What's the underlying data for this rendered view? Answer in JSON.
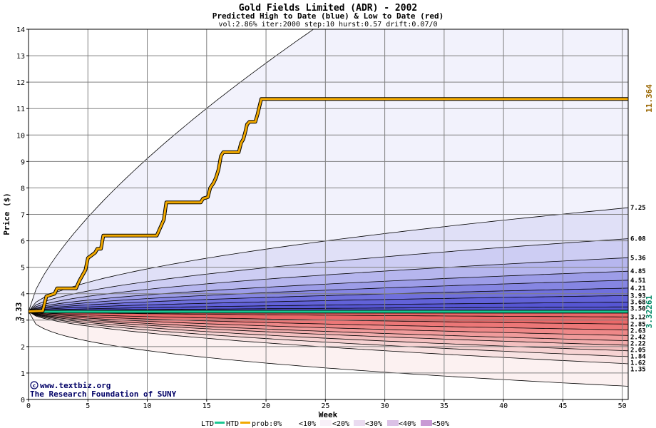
{
  "chart_data": {
    "type": "area",
    "title": "Gold Fields Limited (ADR) - 2002",
    "subtitle": "Predicted High to Date (blue) &  Low to Date (red)",
    "params": "vol:2.86% iter:2000 step:10 hurst:0.57 drift:0.07/0",
    "xlabel": "Week",
    "ylabel": "Price ($)",
    "xlim": [
      0,
      50.5
    ],
    "ylim": [
      0,
      14
    ],
    "x_ticks": [
      0,
      5,
      10,
      15,
      20,
      25,
      30,
      35,
      40,
      45,
      50
    ],
    "y_ticks": [
      0,
      1,
      2,
      3,
      4,
      5,
      6,
      7,
      8,
      9,
      10,
      11,
      12,
      13,
      14
    ],
    "grid": true,
    "start_value_label": "3.33",
    "htd_label": "11.364",
    "ltd_label": "3.32261",
    "right_labels": [
      "7.25",
      "6.08",
      "5.36",
      "4.85",
      "4.51",
      "4.21",
      "3.93",
      "3.68",
      "3.50",
      "3.12",
      "2.85",
      "2.63",
      "2.42",
      "2.22",
      "2.05",
      "1.84",
      "1.62",
      "1.35"
    ],
    "band_end_values": [
      7.25,
      6.08,
      5.36,
      4.85,
      4.51,
      4.21,
      3.93,
      3.68,
      3.5,
      3.12,
      2.85,
      2.63,
      2.42,
      2.22,
      2.05,
      1.84,
      1.62,
      1.35
    ],
    "outer_high_end": 14.0,
    "outer_high_reach_week": 24,
    "outer_low_end": 0.5,
    "start_value": 3.33,
    "htd_series": {
      "name": "HTD",
      "x": [
        0,
        1.2,
        1.5,
        2.2,
        2.4,
        4.0,
        4.3,
        4.8,
        5.0,
        5.6,
        5.8,
        6.1,
        6.3,
        10.8,
        11.0,
        11.4,
        11.6,
        14.5,
        14.7,
        15.1,
        15.3,
        15.6,
        15.8,
        16.0,
        16.2,
        16.4,
        16.6,
        17.7,
        17.9,
        18.1,
        18.3,
        18.4,
        18.6,
        19.1,
        19.3,
        19.4,
        19.6,
        50.5
      ],
      "y": [
        3.33,
        3.35,
        3.9,
        4.0,
        4.2,
        4.2,
        4.5,
        4.9,
        5.35,
        5.55,
        5.7,
        5.7,
        6.2,
        6.2,
        6.4,
        6.8,
        7.45,
        7.45,
        7.6,
        7.65,
        8.0,
        8.2,
        8.4,
        8.7,
        9.2,
        9.35,
        9.35,
        9.35,
        9.7,
        9.85,
        10.2,
        10.4,
        10.5,
        10.5,
        10.8,
        11.0,
        11.364,
        11.364
      ]
    },
    "ltd_value": 3.32261,
    "legend": {
      "ltd": "LTD",
      "htd": "HTD",
      "prob": "prob:0%",
      "bins": [
        "<10%",
        "<20%",
        "<30%",
        "<40%",
        "<50%"
      ]
    }
  },
  "credits": {
    "site": "www.textbiz.org",
    "org": "The Research Foundation of SUNY"
  },
  "colors": {
    "htd_line": "#f2a900",
    "ltd_line": "#19c892",
    "htd_label": "#996600",
    "ltd_label": "#008866",
    "blue_bands": [
      "#f2f2fc",
      "#e0e0f7",
      "#cdcdf3",
      "#b6b6ee",
      "#9d9de8",
      "#8686e3",
      "#7070dd",
      "#6262d8",
      "#5656d3"
    ],
    "red_bands": [
      "#fcf1f1",
      "#f8e2e2",
      "#f6d2d2",
      "#f4c0c0",
      "#f2adad",
      "#f09b9b",
      "#ee8888",
      "#ec7777",
      "#ea6868"
    ],
    "legend_swatches": [
      "#ffffff",
      "#f8f0f8",
      "#eadbf0",
      "#dbc1e6",
      "#c89ad4",
      "#b277c6"
    ]
  }
}
